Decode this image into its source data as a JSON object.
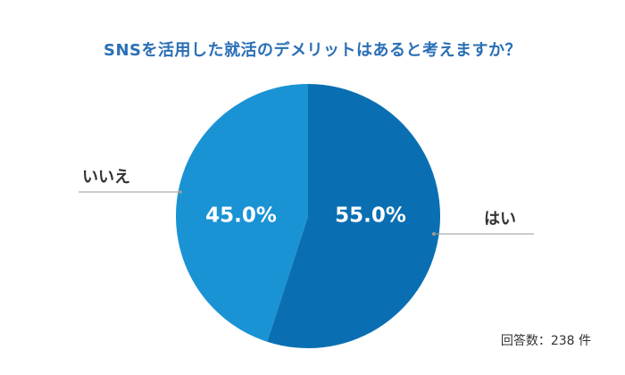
{
  "chart_data": {
    "type": "pie",
    "title": "SNSを活用した就活のデメリットはあると考えますか？",
    "categories": [
      "はい",
      "いいえ"
    ],
    "values": [
      55.0,
      45.0
    ],
    "value_labels": [
      "55.0%",
      "45.0%"
    ],
    "colors": [
      "#0a6fb2",
      "#1a93d5"
    ],
    "start_angle_deg": 0,
    "direction": "clockwise",
    "label_position": "outside-with-leader-lines",
    "note": "回答数：238 件"
  }
}
